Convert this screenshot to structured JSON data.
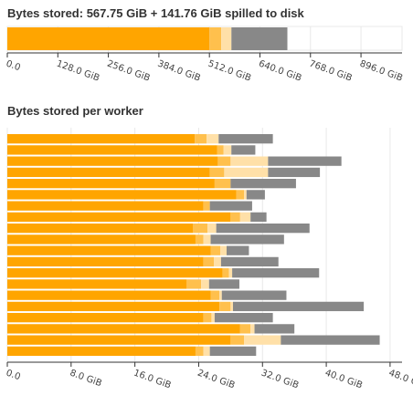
{
  "colors": {
    "memory": "#FFA500",
    "memory_light": "#FFC04D",
    "memory_pale": "#FFE0A8",
    "spilled": "#888888",
    "grid": "#e8e8e8",
    "axis": "#333333"
  },
  "chart_data": [
    {
      "type": "bar",
      "orientation": "horizontal",
      "stacked": true,
      "title": "Bytes stored: 567.75 GiB + 141.76 GiB spilled to disk",
      "unit": "GiB",
      "xlim": [
        0,
        1000
      ],
      "xticks": [
        "0.0",
        "128.0 GiB",
        "256.0 GiB",
        "384.0 GiB",
        "512.0 GiB",
        "640.0 GiB",
        "768.0 GiB",
        "896.0 GiB"
      ],
      "xtick_values": [
        0,
        128,
        256,
        384,
        512,
        640,
        768,
        896
      ],
      "grid": true,
      "series": [
        {
          "key": "memory",
          "values": [
            512
          ]
        },
        {
          "key": "memory_light",
          "values": [
            30
          ]
        },
        {
          "key": "memory_pale",
          "values": [
            25.75
          ]
        },
        {
          "key": "spilled",
          "values": [
            141.76
          ]
        }
      ]
    },
    {
      "type": "bar",
      "orientation": "horizontal",
      "stacked": true,
      "title": "Bytes stored per worker",
      "unit": "GiB",
      "xlim": [
        0,
        49.5
      ],
      "xticks": [
        "0.0",
        "8.0 GiB",
        "16.0 GiB",
        "24.0 GiB",
        "32.0 GiB",
        "40.0 GiB",
        "48.0 GiB"
      ],
      "xtick_values": [
        0,
        8,
        16,
        24,
        32,
        40,
        48
      ],
      "grid": true,
      "workers": [
        {
          "memory": 23.5,
          "memory_light": 1.5,
          "memory_pale": 1.5,
          "spilled": 6.8
        },
        {
          "memory": 26.3,
          "memory_light": 0.8,
          "memory_pale": 1.0,
          "spilled": 3.0
        },
        {
          "memory": 26.4,
          "memory_light": 1.6,
          "memory_pale": 4.7,
          "spilled": 9.2
        },
        {
          "memory": 25.4,
          "memory_light": 1.8,
          "memory_pale": 5.5,
          "spilled": 6.5
        },
        {
          "memory": 26.0,
          "memory_light": 2.0,
          "memory_pale": 0.0,
          "spilled": 8.2
        },
        {
          "memory": 28.7,
          "memory_light": 1.0,
          "memory_pale": 0.3,
          "spilled": 2.3
        },
        {
          "memory": 24.6,
          "memory_light": 0.8,
          "memory_pale": 0.0,
          "spilled": 5.3
        },
        {
          "memory": 28.0,
          "memory_light": 1.2,
          "memory_pale": 1.3,
          "spilled": 2.0
        },
        {
          "memory": 23.3,
          "memory_light": 1.8,
          "memory_pale": 1.1,
          "spilled": 11.7
        },
        {
          "memory": 23.6,
          "memory_light": 1.0,
          "memory_pale": 0.9,
          "spilled": 9.2
        },
        {
          "memory": 25.5,
          "memory_light": 1.2,
          "memory_pale": 0.8,
          "spilled": 2.8
        },
        {
          "memory": 24.6,
          "memory_light": 1.3,
          "memory_pale": 0.9,
          "spilled": 7.2
        },
        {
          "memory": 27.0,
          "memory_light": 0.8,
          "memory_pale": 0.4,
          "spilled": 10.9
        },
        {
          "memory": 22.5,
          "memory_light": 1.8,
          "memory_pale": 1.0,
          "spilled": 3.8
        },
        {
          "memory": 25.5,
          "memory_light": 1.1,
          "memory_pale": 0.3,
          "spilled": 8.1
        },
        {
          "memory": 26.6,
          "memory_light": 1.4,
          "memory_pale": 0.3,
          "spilled": 16.4
        },
        {
          "memory": 24.6,
          "memory_light": 1.0,
          "memory_pale": 0.4,
          "spilled": 7.3
        },
        {
          "memory": 29.2,
          "memory_light": 1.3,
          "memory_pale": 0.5,
          "spilled": 5.0
        },
        {
          "memory": 28.0,
          "memory_light": 1.7,
          "memory_pale": 4.6,
          "spilled": 12.4
        },
        {
          "memory": 23.6,
          "memory_light": 1.0,
          "memory_pale": 0.8,
          "spilled": 5.8
        }
      ]
    }
  ]
}
